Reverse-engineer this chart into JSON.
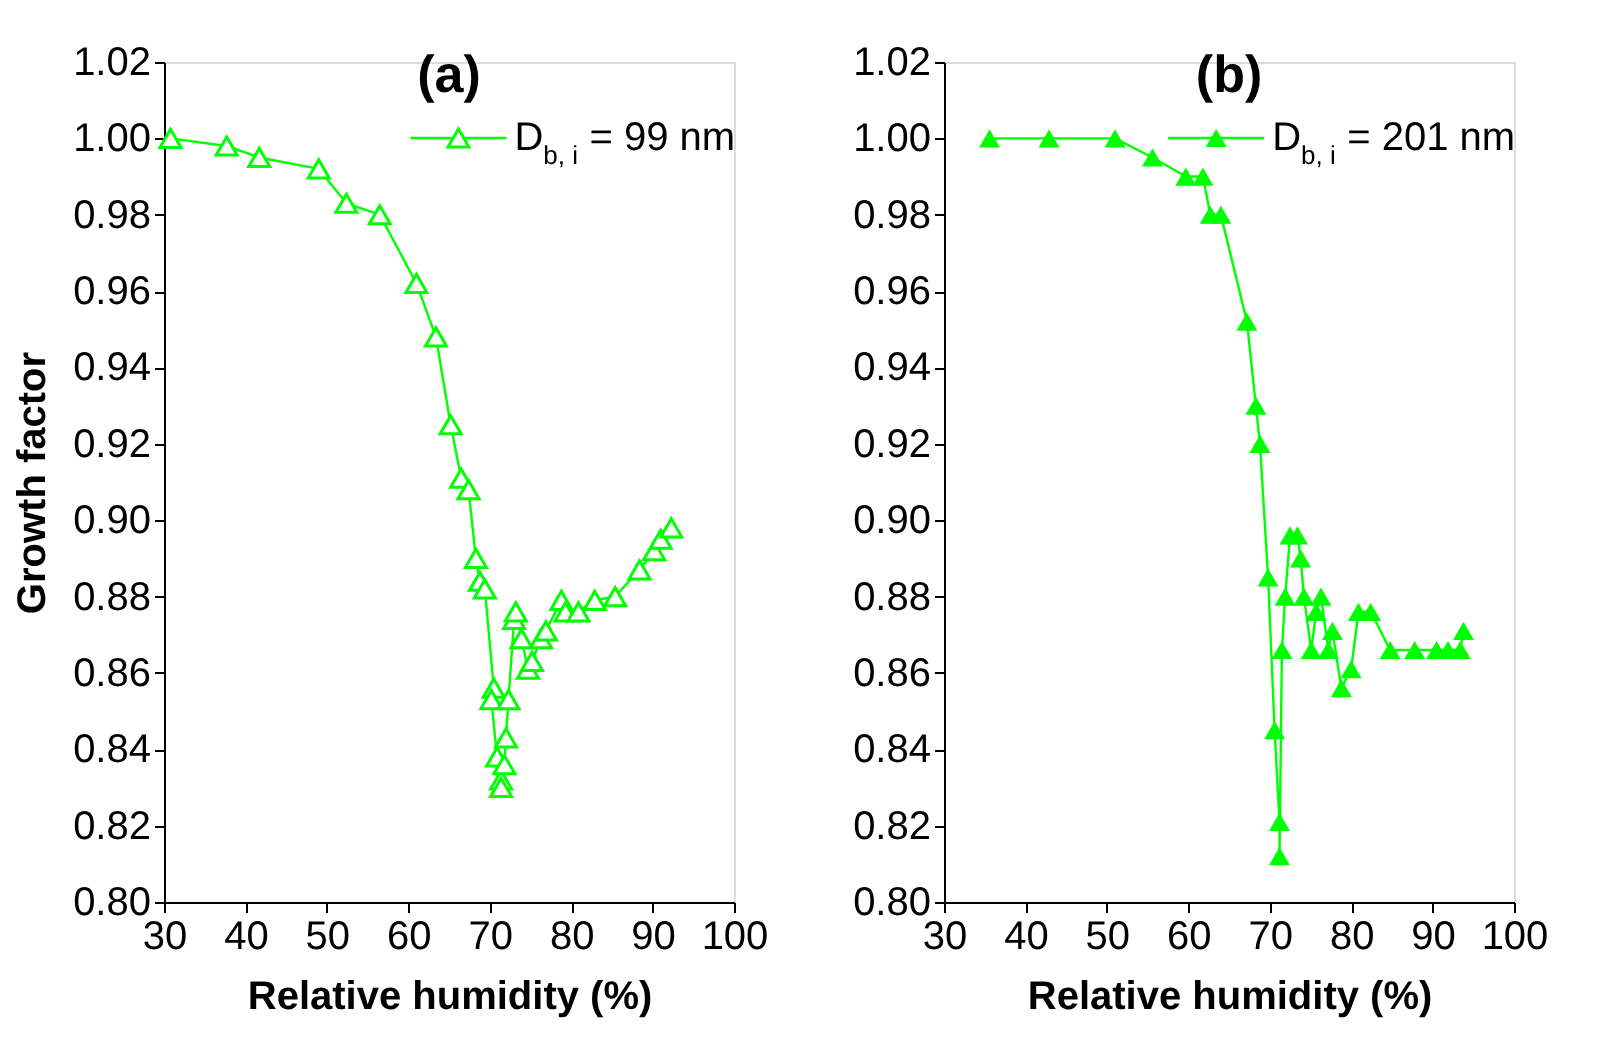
{
  "chart_data": [
    {
      "type": "line",
      "title": "(a)",
      "xlabel": "Relative humidity (%)",
      "ylabel": "Growth factor",
      "xlim": [
        30,
        100
      ],
      "ylim": [
        0.8,
        1.02
      ],
      "xticks": [
        30,
        40,
        50,
        60,
        70,
        80,
        90,
        100
      ],
      "yticks": [
        {
          "value": 0.8,
          "label": "0.80"
        },
        0.82,
        0.84,
        0.86,
        0.88,
        {
          "value": 0.9,
          "label": "0.90"
        },
        0.92,
        0.94,
        0.96,
        0.98,
        {
          "value": 1.0,
          "label": "1.00"
        },
        1.02
      ],
      "marker": "triangle",
      "grid": false,
      "legend": "top right",
      "x": [
        30.8,
        37.7,
        41.7,
        49,
        52.4,
        56.5,
        61,
        63.4,
        65.2,
        66.5,
        67.4,
        68.3,
        68.8,
        69.4,
        70.5,
        70.2,
        70.9,
        71.4,
        71.4,
        71.8,
        72,
        72.3,
        73,
        73.2,
        73.9,
        74.7,
        75.2,
        76.3,
        76.9,
        78.8,
        79.3,
        80.9,
        82.9,
        85.4,
        88.4,
        90.2,
        91,
        92.3
      ],
      "series": [
        {
          "name": "D$_{b, i}$ = 99 nm",
          "color": "#00ff00",
          "values": [
            1.0,
            0.998,
            0.995,
            0.992,
            0.983,
            0.98,
            0.962,
            0.948,
            0.925,
            0.911,
            0.908,
            0.89,
            0.884,
            0.882,
            0.856,
            0.853,
            0.838,
            0.832,
            0.83,
            0.836,
            0.843,
            0.853,
            0.874,
            0.876,
            0.869,
            0.861,
            0.863,
            0.869,
            0.871,
            0.879,
            0.876,
            0.876,
            0.879,
            0.88,
            0.887,
            0.892,
            0.895,
            0.898
          ]
        }
      ]
    },
    {
      "type": "line",
      "title": "(b)",
      "xlabel": "Relative humidity (%)",
      "xlim": [
        30,
        100
      ],
      "ylim": [
        0.8,
        1.02
      ],
      "xticks": [
        30,
        40,
        50,
        60,
        70,
        80,
        90,
        100
      ],
      "yticks": [
        {
          "value": 0.8,
          "label": "0.80"
        },
        0.82,
        0.84,
        0.86,
        0.88,
        {
          "value": 0.9,
          "label": "0.90"
        },
        0.92,
        0.94,
        0.96,
        0.98,
        {
          "value": 1.0,
          "label": "1.00"
        },
        1.02
      ],
      "marker": "triangle",
      "grid": false,
      "legend": "top right",
      "x": [
        35.6,
        42.9,
        51,
        55.6,
        59.7,
        61.8,
        62.7,
        64,
        67.2,
        68.3,
        68.8,
        69.8,
        70.6,
        71.2,
        71.2,
        71.5,
        71.9,
        72.5,
        73.4,
        73.8,
        74.2,
        75.1,
        75.7,
        76.3,
        77.2,
        77.7,
        78.8,
        80,
        80.9,
        82.4,
        84.8,
        87.8,
        90.5,
        91.9,
        93.4,
        93.8
      ],
      "series": [
        {
          "name": "D$_{b, i}$ = 201 nm",
          "color": "#00ff00",
          "values": [
            1.0,
            1.0,
            1.0,
            0.995,
            0.99,
            0.99,
            0.98,
            0.98,
            0.952,
            0.93,
            0.92,
            0.885,
            0.845,
            0.821,
            0.812,
            0.866,
            0.88,
            0.896,
            0.896,
            0.89,
            0.88,
            0.866,
            0.876,
            0.88,
            0.866,
            0.871,
            0.856,
            0.861,
            0.876,
            0.876,
            0.866,
            0.866,
            0.866,
            0.866,
            0.866,
            0.871
          ]
        }
      ]
    }
  ]
}
